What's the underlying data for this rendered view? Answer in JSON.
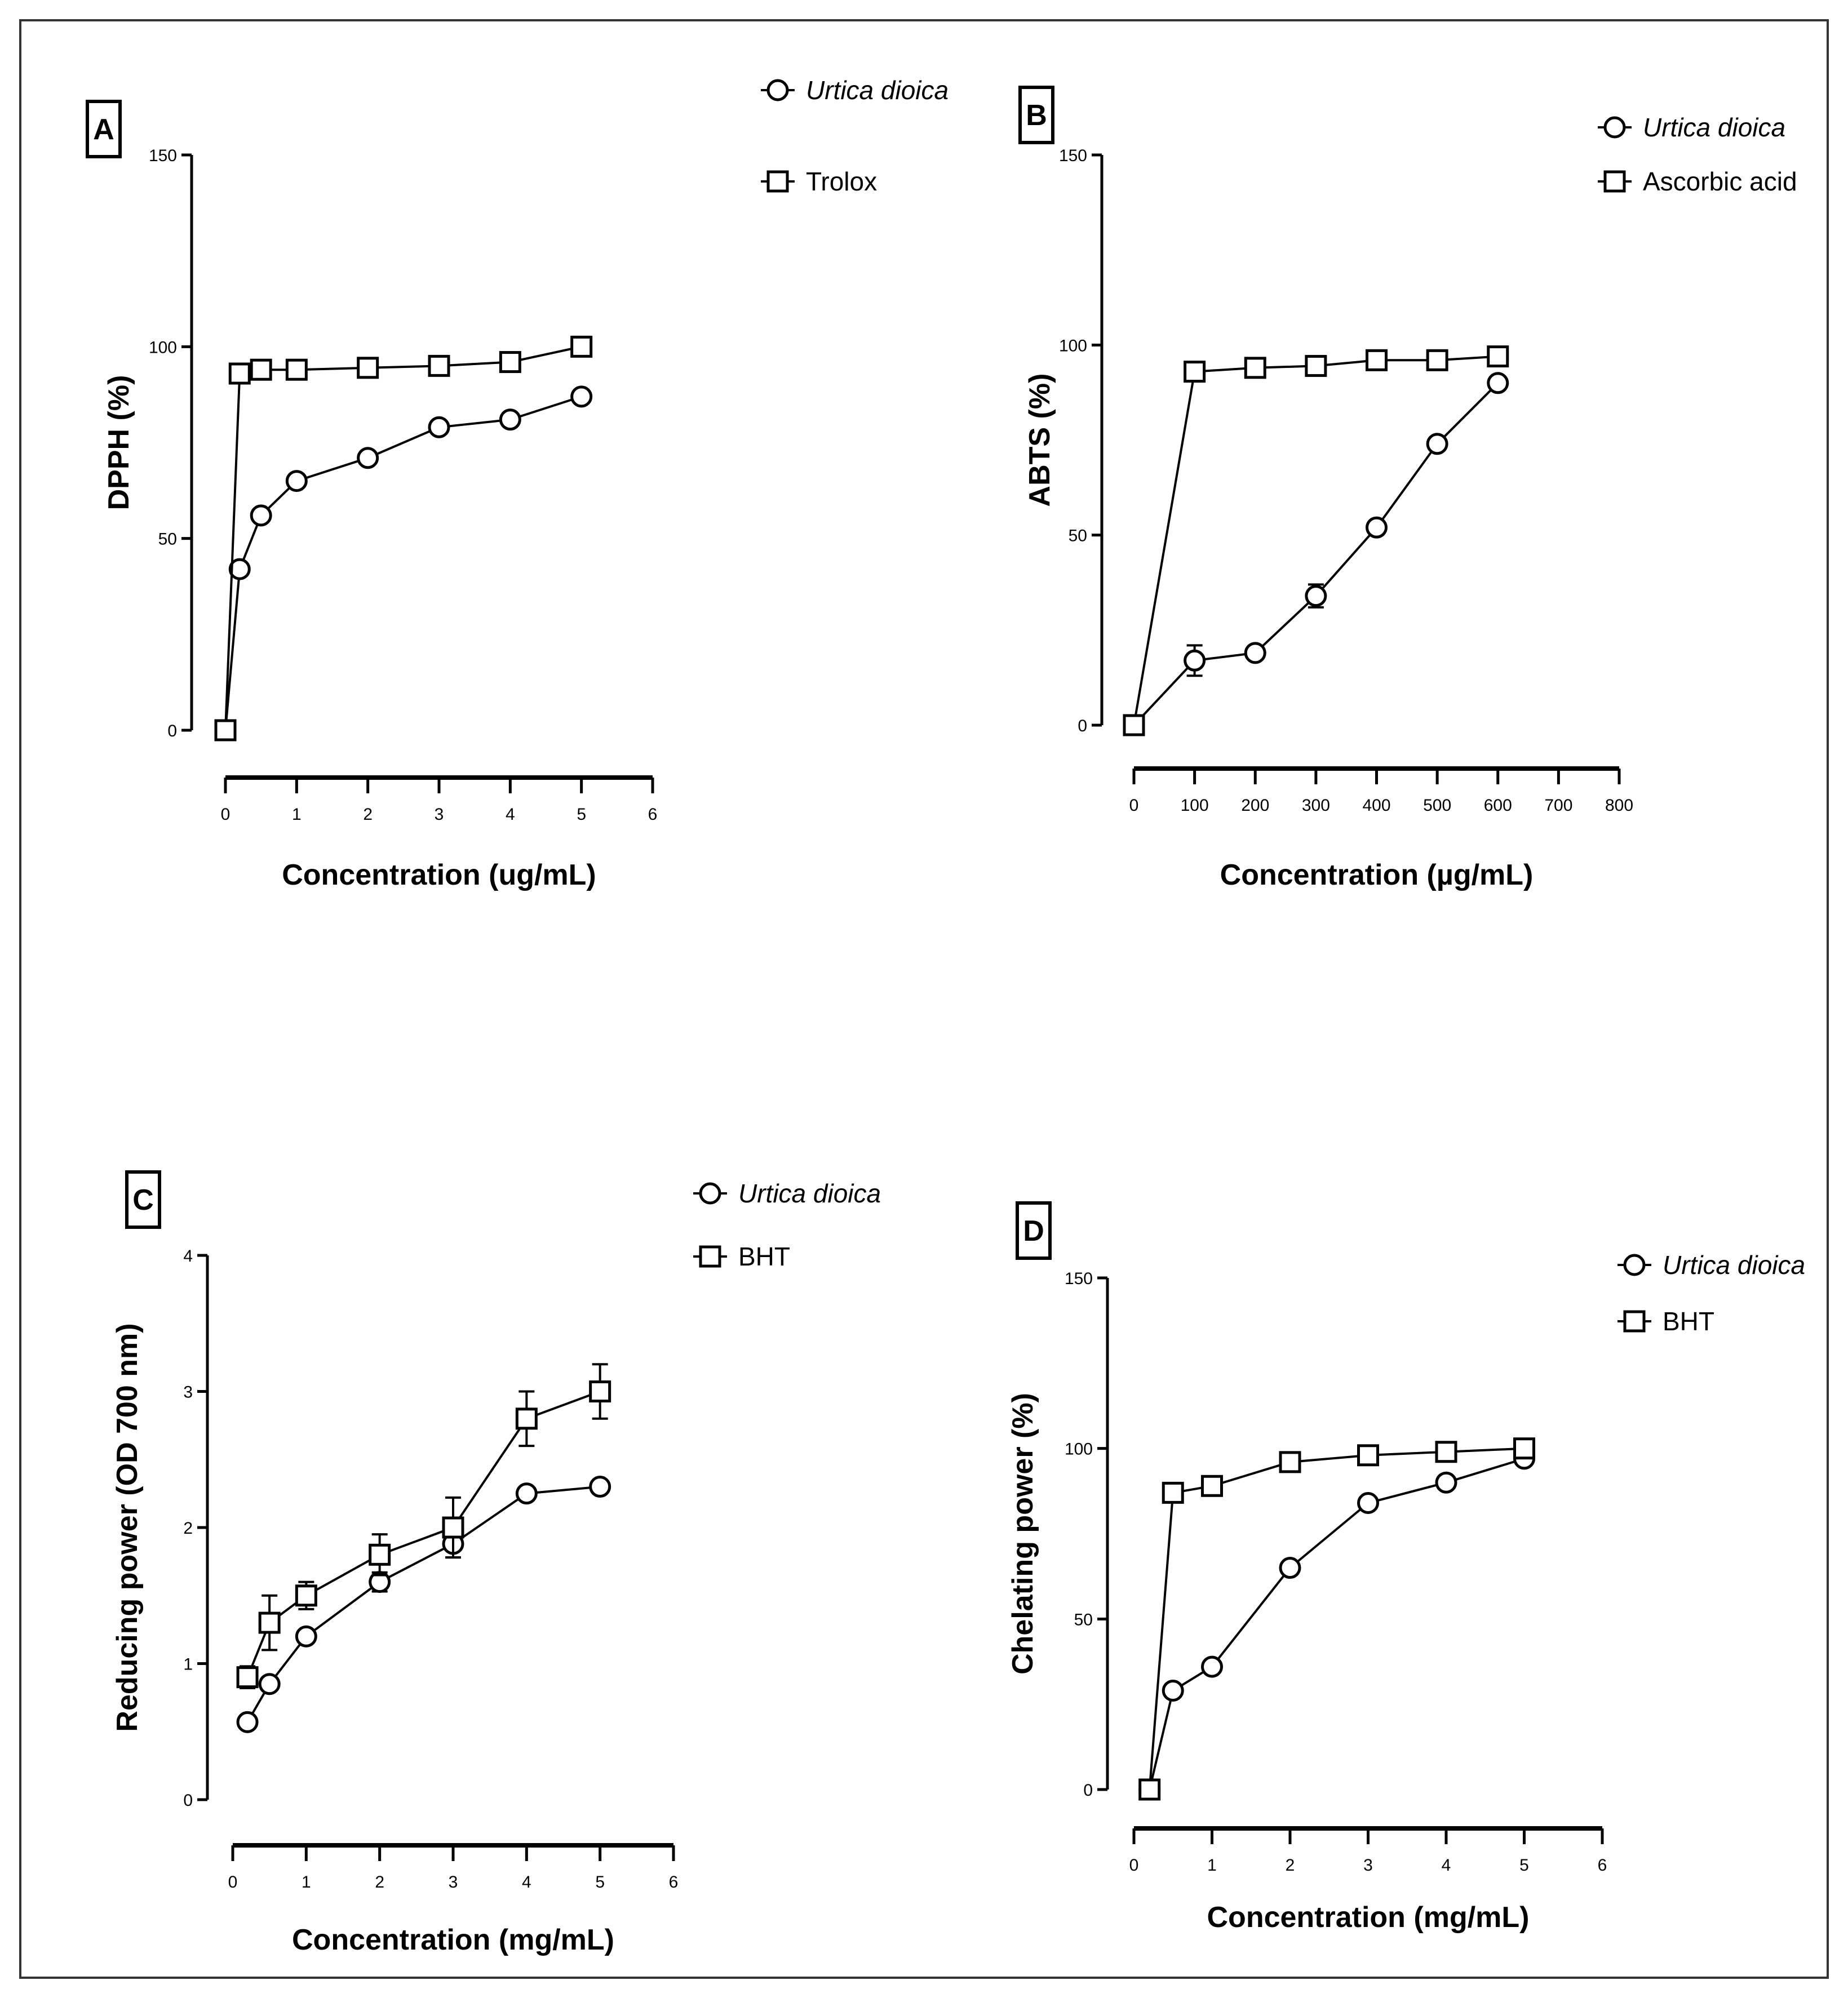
{
  "chart_data": [
    {
      "type": "line",
      "panel": "A",
      "xlabel": "Concentration (ug/mL)",
      "ylabel": "DPPH (%)",
      "xlim": [
        0,
        6
      ],
      "ylim": [
        0,
        150
      ],
      "xticks": [
        0,
        1,
        2,
        3,
        4,
        5,
        6
      ],
      "yticks": [
        0,
        50,
        100,
        150
      ],
      "legend_position": "top-right",
      "series": [
        {
          "name": "Urtica dioica",
          "italic": true,
          "marker": "circle",
          "x": [
            0,
            0.2,
            0.5,
            1,
            2,
            3,
            4,
            5
          ],
          "y": [
            0,
            42,
            56,
            65,
            71,
            79,
            81,
            87
          ],
          "err": [
            0,
            0,
            0,
            0,
            0,
            0,
            0,
            0
          ]
        },
        {
          "name": "Trolox",
          "italic": false,
          "marker": "square",
          "x": [
            0,
            0.2,
            0.5,
            1,
            2,
            3,
            4,
            5
          ],
          "y": [
            0,
            93,
            94,
            94,
            94.5,
            95,
            96,
            100
          ],
          "err": [
            0,
            0,
            0,
            0,
            0,
            0,
            0,
            0
          ]
        }
      ]
    },
    {
      "type": "line",
      "panel": "B",
      "xlabel": "Concentration (µg/mL)",
      "ylabel": "ABTS (%)",
      "xlim": [
        0,
        800
      ],
      "ylim": [
        0,
        150
      ],
      "xticks": [
        0,
        100,
        200,
        300,
        400,
        500,
        600,
        700,
        800
      ],
      "yticks": [
        0,
        50,
        100,
        150
      ],
      "legend_position": "top-right",
      "series": [
        {
          "name": "Urtica dioica",
          "italic": true,
          "marker": "circle",
          "x": [
            0,
            100,
            200,
            300,
            400,
            500,
            600
          ],
          "y": [
            0,
            17,
            19,
            34,
            52,
            74,
            90
          ],
          "err": [
            0,
            4,
            0,
            3,
            0,
            0,
            0
          ]
        },
        {
          "name": "Ascorbic acid",
          "italic": false,
          "marker": "square",
          "x": [
            0,
            100,
            200,
            300,
            400,
            500,
            600
          ],
          "y": [
            0,
            93,
            94,
            94.5,
            96,
            96,
            97
          ],
          "err": [
            0,
            0,
            0,
            0,
            0,
            0,
            0
          ]
        }
      ]
    },
    {
      "type": "line",
      "panel": "C",
      "xlabel": "Concentration (mg/mL)",
      "ylabel": "Reducing power (OD 700 nm)",
      "xlim": [
        0,
        6
      ],
      "ylim": [
        0,
        4
      ],
      "xticks": [
        0,
        1,
        2,
        3,
        4,
        5,
        6
      ],
      "yticks": [
        0,
        1,
        2,
        3,
        4
      ],
      "legend_position": "top-right",
      "series": [
        {
          "name": "Urtica dioica",
          "italic": true,
          "marker": "circle",
          "x": [
            0.2,
            0.5,
            1,
            2,
            3,
            4,
            5
          ],
          "y": [
            0.57,
            0.85,
            1.2,
            1.6,
            1.88,
            2.25,
            2.3
          ],
          "err": [
            0,
            0,
            0,
            0.07,
            0.1,
            0,
            0
          ]
        },
        {
          "name": "BHT",
          "italic": false,
          "marker": "square",
          "x": [
            0.2,
            0.5,
            1,
            2,
            3,
            4,
            5
          ],
          "y": [
            0.9,
            1.3,
            1.5,
            1.8,
            2.0,
            2.8,
            3.0
          ],
          "err": [
            0.08,
            0.2,
            0.1,
            0.15,
            0.22,
            0.2,
            0.2
          ]
        }
      ]
    },
    {
      "type": "line",
      "panel": "D",
      "xlabel": "Concentration (mg/mL)",
      "ylabel": "Chelating power (%)",
      "xlim": [
        0,
        6
      ],
      "ylim": [
        0,
        150
      ],
      "xticks": [
        0,
        1,
        2,
        3,
        4,
        5,
        6
      ],
      "yticks": [
        0,
        50,
        100,
        150
      ],
      "legend_position": "top-right",
      "series": [
        {
          "name": "Urtica dioica",
          "italic": true,
          "marker": "circle",
          "x": [
            0.2,
            0.5,
            1,
            2,
            3,
            4,
            5
          ],
          "y": [
            0,
            29,
            36,
            65,
            84,
            90,
            97
          ],
          "err": [
            0,
            0,
            0,
            0,
            0,
            0,
            0
          ]
        },
        {
          "name": "BHT",
          "italic": false,
          "marker": "square",
          "x": [
            0.2,
            0.5,
            1,
            2,
            3,
            4,
            5
          ],
          "y": [
            0,
            87,
            89,
            96,
            98,
            99,
            100
          ],
          "err": [
            0,
            0,
            0,
            0,
            0,
            0,
            0
          ]
        }
      ]
    }
  ]
}
